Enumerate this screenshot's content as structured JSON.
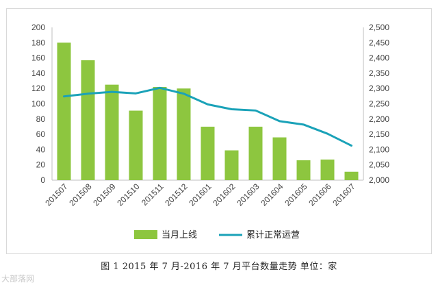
{
  "chart_data": {
    "type": "bar",
    "categories": [
      "201507",
      "201508",
      "201509",
      "201510",
      "201511",
      "201512",
      "201601",
      "201602",
      "201603",
      "201604",
      "201605",
      "201606",
      "201607"
    ],
    "series": [
      {
        "name": "当月上线",
        "type": "bar",
        "axis": "left",
        "values": [
          180,
          157,
          125,
          91,
          122,
          120,
          70,
          39,
          70,
          56,
          26,
          27,
          11
        ],
        "color": "#8dc63f"
      },
      {
        "name": "累计正常运营",
        "type": "line",
        "axis": "right",
        "values": [
          2274,
          2283,
          2289,
          2284,
          2302,
          2283,
          2248,
          2232,
          2228,
          2193,
          2182,
          2152,
          2113
        ],
        "color": "#1aa2b8"
      }
    ],
    "y_left": {
      "lim": [
        0,
        200
      ],
      "ticks": [
        "0",
        "20",
        "40",
        "60",
        "80",
        "100",
        "120",
        "140",
        "160",
        "180",
        "200"
      ]
    },
    "y_right": {
      "lim": [
        2000,
        2500
      ],
      "ticks": [
        "2,000",
        "2,050",
        "2,100",
        "2,150",
        "2,200",
        "2,250",
        "2,300",
        "2,350",
        "2,400",
        "2,450",
        "2,500"
      ]
    },
    "grid": false,
    "legend_position": "bottom"
  },
  "caption": "图 1   2015 年 7 月-2016 年 7 月平台数量走势     单位：家",
  "watermark": "大部落网"
}
